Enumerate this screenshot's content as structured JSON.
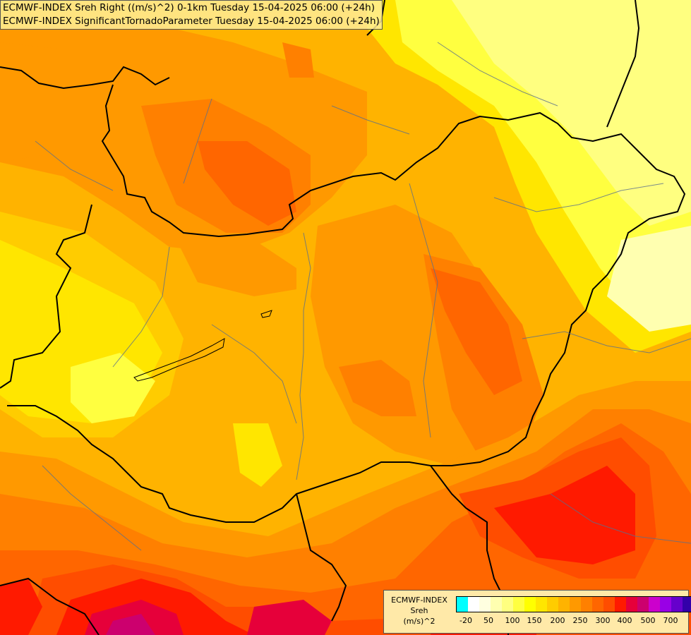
{
  "title": {
    "line1": "ECMWF-INDEX Sreh Right ((m/s)^2) 0-1km Tuesday 15-04-2025 06:00 (+24h)",
    "line2": "ECMWF-INDEX SignificantTornadoParameter Tuesday 15-04-2025 06:00 (+24h)"
  },
  "legend": {
    "title_line1": "ECMWF-INDEX",
    "title_line2": "Sreh",
    "title_line3": "(m/s)^2",
    "colors": [
      "#00ffff",
      "#ffffff",
      "#ffffe0",
      "#ffffb0",
      "#ffff80",
      "#ffff40",
      "#ffff00",
      "#ffe600",
      "#ffcc00",
      "#ffb300",
      "#ff9900",
      "#ff8000",
      "#ff6600",
      "#ff4d00",
      "#ff1a00",
      "#e6003a",
      "#cc006e",
      "#cc00cc",
      "#9900e6",
      "#6600cc",
      "#3300aa",
      "#000080"
    ],
    "ticks": [
      "-20",
      "50",
      "100",
      "150",
      "200",
      "250",
      "300",
      "400",
      "500",
      "700"
    ]
  }
}
